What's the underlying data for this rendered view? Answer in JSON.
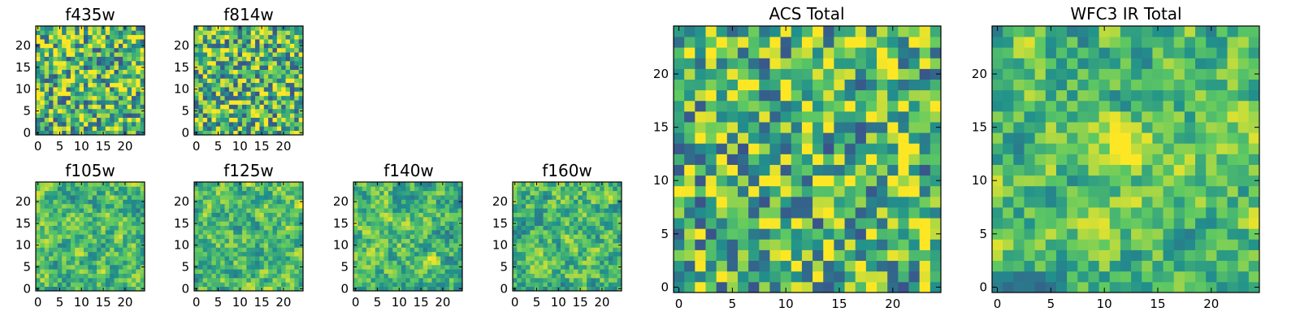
{
  "colormap": [
    "#440154",
    "#3b528b",
    "#21918c",
    "#5ec962",
    "#fde725"
  ],
  "chart_data": [
    {
      "type": "heatmap",
      "title": "f435w",
      "grid_size": 25,
      "xlim": [
        0,
        24
      ],
      "ylim": [
        0,
        24
      ],
      "xticks": [
        "0",
        "5",
        "10",
        "15",
        "20"
      ],
      "yticks": [
        "0",
        "5",
        "10",
        "15",
        "20"
      ],
      "seed": 11,
      "smooth": 0
    },
    {
      "type": "heatmap",
      "title": "f814w",
      "grid_size": 25,
      "xlim": [
        0,
        24
      ],
      "ylim": [
        0,
        24
      ],
      "xticks": [
        "0",
        "5",
        "10",
        "15",
        "20"
      ],
      "yticks": [
        "0",
        "5",
        "10",
        "15",
        "20"
      ],
      "seed": 23,
      "smooth": 0
    },
    {
      "type": "heatmap",
      "title": "f105w",
      "grid_size": 25,
      "xlim": [
        0,
        24
      ],
      "ylim": [
        0,
        24
      ],
      "xticks": [
        "0",
        "5",
        "10",
        "15",
        "20"
      ],
      "yticks": [
        "0",
        "5",
        "10",
        "15",
        "20"
      ],
      "seed": 37,
      "smooth": 1
    },
    {
      "type": "heatmap",
      "title": "f125w",
      "grid_size": 25,
      "xlim": [
        0,
        24
      ],
      "ylim": [
        0,
        24
      ],
      "xticks": [
        "0",
        "5",
        "10",
        "15",
        "20"
      ],
      "yticks": [
        "0",
        "5",
        "10",
        "15",
        "20"
      ],
      "seed": 41,
      "smooth": 1
    },
    {
      "type": "heatmap",
      "title": "f140w",
      "grid_size": 25,
      "xlim": [
        0,
        24
      ],
      "ylim": [
        0,
        24
      ],
      "xticks": [
        "0",
        "5",
        "10",
        "15",
        "20"
      ],
      "yticks": [
        "0",
        "5",
        "10",
        "15",
        "20"
      ],
      "seed": 53,
      "smooth": 1
    },
    {
      "type": "heatmap",
      "title": "f160w",
      "grid_size": 25,
      "xlim": [
        0,
        24
      ],
      "ylim": [
        0,
        24
      ],
      "xticks": [
        "0",
        "5",
        "10",
        "15",
        "20"
      ],
      "yticks": [
        "0",
        "5",
        "10",
        "15",
        "20"
      ],
      "seed": 67,
      "smooth": 1
    },
    {
      "type": "heatmap",
      "title": "ACS Total",
      "grid_size": 25,
      "xlim": [
        0,
        24
      ],
      "ylim": [
        0,
        24
      ],
      "xticks": [
        "0",
        "5",
        "10",
        "15",
        "20"
      ],
      "yticks": [
        "0",
        "5",
        "10",
        "15",
        "20"
      ],
      "seed": 79,
      "smooth": 0
    },
    {
      "type": "heatmap",
      "title": "WFC3 IR Total",
      "grid_size": 25,
      "xlim": [
        0,
        24
      ],
      "ylim": [
        0,
        24
      ],
      "xticks": [
        "0",
        "5",
        "10",
        "15",
        "20"
      ],
      "yticks": [
        "0",
        "5",
        "10",
        "15",
        "20"
      ],
      "seed": 97,
      "smooth": 1,
      "bright_spot": [
        12,
        13
      ]
    }
  ]
}
